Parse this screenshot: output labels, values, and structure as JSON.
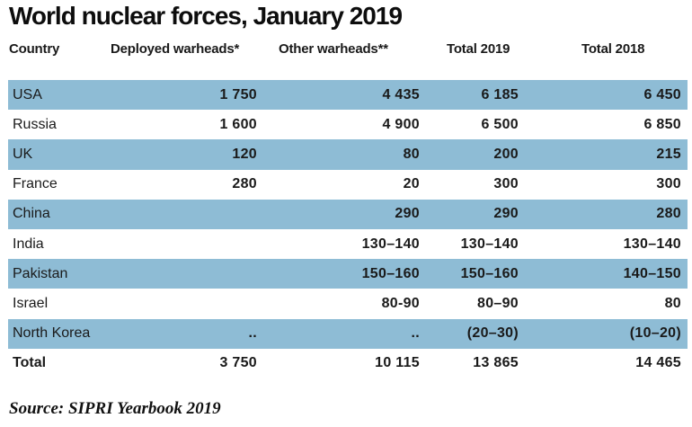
{
  "title": "World nuclear forces, January 2019",
  "source": "Source: SIPRI Yearbook 2019",
  "colors": {
    "row_highlight": "#8ebcd5",
    "text": "#1a1a1a",
    "background": "#ffffff"
  },
  "chart_data": {
    "type": "table",
    "title": "World nuclear forces, January 2019",
    "columns": [
      "Country",
      "Deployed warheads*",
      "Other warheads**",
      "Total 2019",
      "Total 2018"
    ],
    "rows": [
      {
        "country": "USA",
        "deployed": "1 750",
        "other": "4 435",
        "total2019": "6 185",
        "total2018": "6 450",
        "highlight": true
      },
      {
        "country": "Russia",
        "deployed": "1 600",
        "other": "4 900",
        "total2019": "6 500",
        "total2018": "6 850",
        "highlight": false
      },
      {
        "country": "UK",
        "deployed": "120",
        "other": "80",
        "total2019": "200",
        "total2018": "215",
        "highlight": true
      },
      {
        "country": "France",
        "deployed": "280",
        "other": "20",
        "total2019": "300",
        "total2018": "300",
        "highlight": false
      },
      {
        "country": "China",
        "deployed": "",
        "other": "290",
        "total2019": "290",
        "total2018": "280",
        "highlight": true
      },
      {
        "country": "India",
        "deployed": "",
        "other": "130–140",
        "total2019": "130–140",
        "total2018": "130–140",
        "highlight": false
      },
      {
        "country": "Pakistan",
        "deployed": "",
        "other": "150–160",
        "total2019": "150–160",
        "total2018": "140–150",
        "highlight": true
      },
      {
        "country": "Israel",
        "deployed": "",
        "other": "80-90",
        "total2019": "80–90",
        "total2018": "80",
        "highlight": false
      },
      {
        "country": "North Korea",
        "deployed": "..",
        "other": "..",
        "total2019": "(20–30)",
        "total2018": "(10–20)",
        "highlight": true
      }
    ],
    "total_row": {
      "country": "Total",
      "deployed": "3 750",
      "other": "10 115",
      "total2019": "13 865",
      "total2018": "14 465"
    },
    "source": "Source: SIPRI Yearbook 2019",
    "layout": {
      "grid": "off",
      "highlight_pattern": "alternating rows starting with first"
    }
  }
}
